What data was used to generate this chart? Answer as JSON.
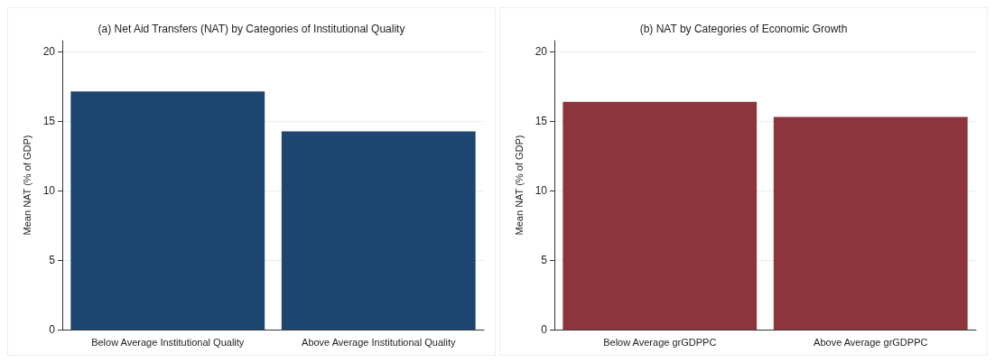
{
  "chart_data": [
    {
      "type": "bar",
      "title": "(a) Net Aid Transfers (NAT) by Categories of Institutional Quality",
      "ylabel": "Mean NAT (% of GDP)",
      "categories": [
        "Below Average Institutional Quality",
        "Above Average Institutional Quality"
      ],
      "values": [
        17.15,
        14.27
      ],
      "color": "#1c4670",
      "ylim": [
        0,
        20.8
      ],
      "yticks": [
        0,
        5,
        10,
        15,
        20
      ],
      "grid": "y"
    },
    {
      "type": "bar",
      "title": "(b) NAT by Categories of Economic Growth",
      "ylabel": "Mean NAT (% of GDP)",
      "categories": [
        "Below Average grGDPPC",
        "Above Average grGDPPC"
      ],
      "values": [
        16.4,
        15.3
      ],
      "color": "#8e343c",
      "ylim": [
        0,
        20.8
      ],
      "yticks": [
        0,
        5,
        10,
        15,
        20
      ],
      "grid": "y"
    }
  ]
}
